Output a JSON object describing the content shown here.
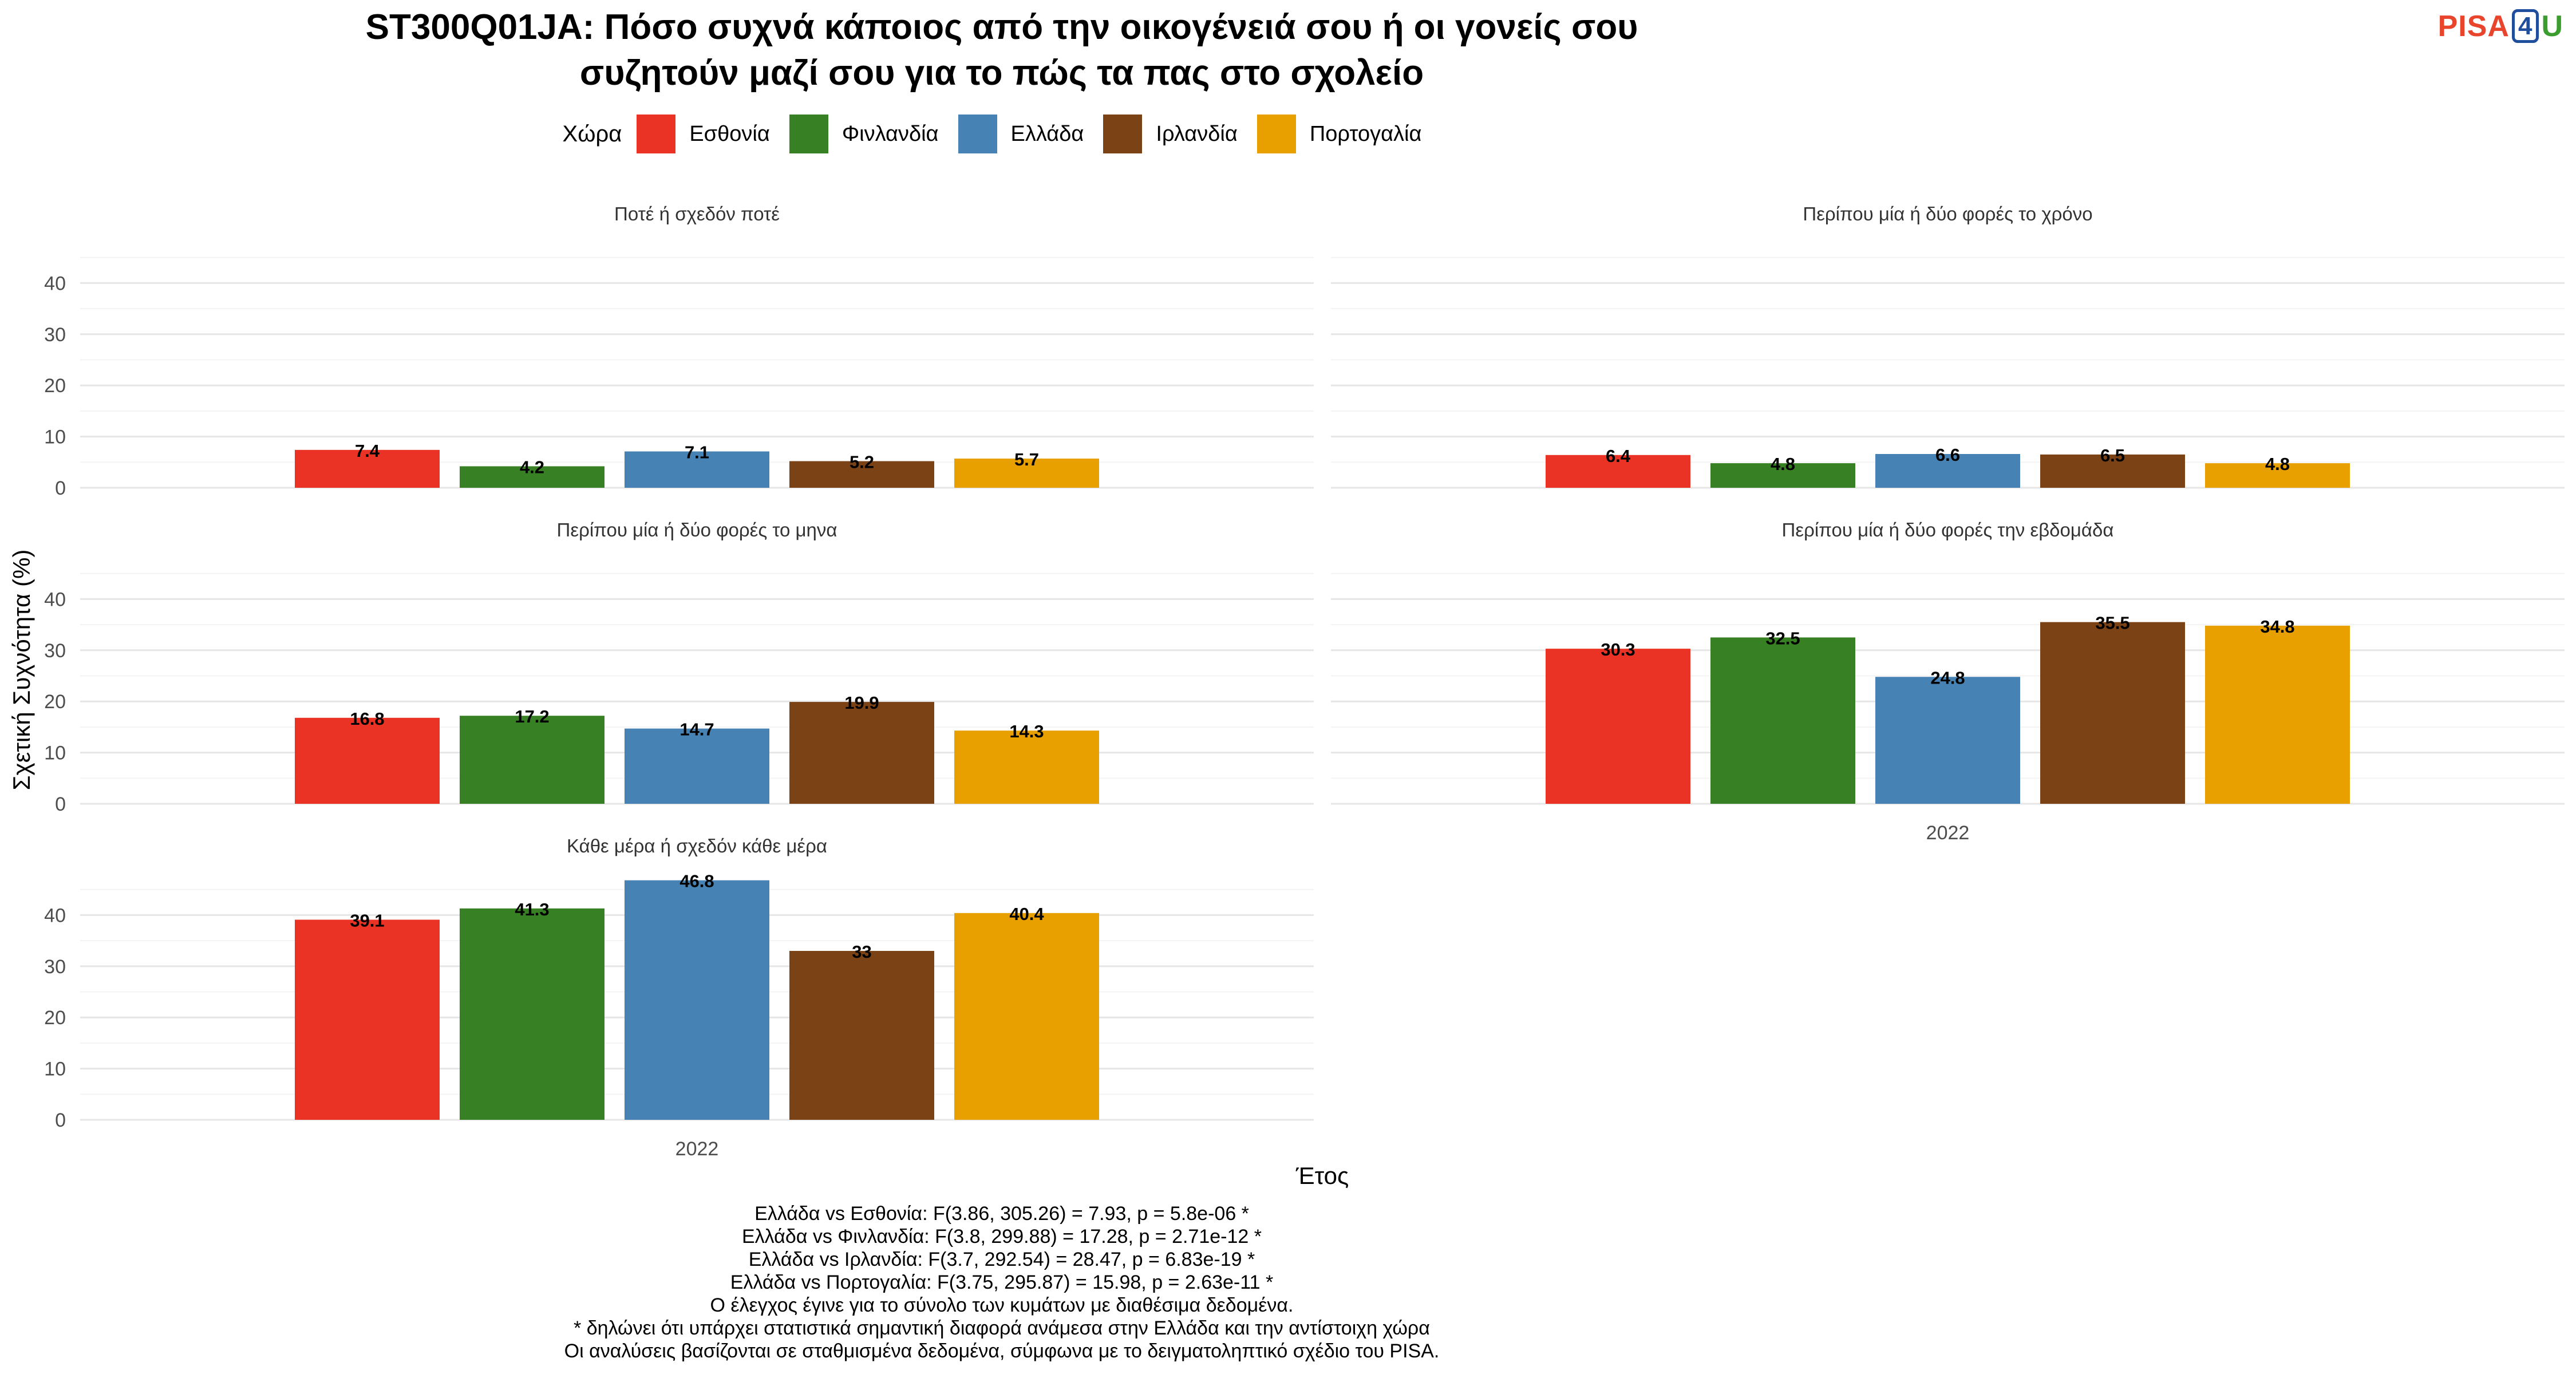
{
  "title_line1": "ST300Q01JA: Πόσο συχνά κάποιος από την οικογένειά σου ή οι γονείς σου",
  "title_line2": "συζητούν μαζί σου για το πώς τα πας στο σχολείο",
  "logo": {
    "part1": "PISA",
    "part2": "4",
    "part3": "U"
  },
  "legend": {
    "title": "Χώρα",
    "items": [
      {
        "label": "Εσθονία",
        "color": "#EA3324"
      },
      {
        "label": "Φινλανδία",
        "color": "#378024"
      },
      {
        "label": "Ελλάδα",
        "color": "#4682B4"
      },
      {
        "label": "Ιρλανδία",
        "color": "#7B4215"
      },
      {
        "label": "Πορτογαλία",
        "color": "#E8A000"
      }
    ]
  },
  "footer": {
    "line1": "Ελλάδα vs Εσθονία: F(3.86, 305.26) = 7.93, p = 5.8e-06 *",
    "line2": "Ελλάδα vs Φινλανδία: F(3.8, 299.88) = 17.28, p = 2.71e-12 *",
    "line3": "Ελλάδα vs Ιρλανδία: F(3.7, 292.54) = 28.47, p = 6.83e-19 *",
    "line4": "Ελλάδα vs Πορτογαλία: F(3.75, 295.87) = 15.98, p = 2.63e-11 *",
    "line5": "Ο έλεγχος έγινε για το σύνολο των κυμάτων με διαθέσιμα δεδομένα.",
    "line6": "* δηλώνει ότι υπάρχει στατιστικά σημαντική διαφορά ανάμεσα στην Ελλάδα και την αντίστοιχη χώρα",
    "line7": "Οι αναλύσεις βασίζονται σε σταθμισμένα δεδομένα, σύμφωνα με το δειγματοληπτικό σχέδιο του PISA."
  },
  "chart_data": {
    "type": "bar",
    "xlabel": "Έτος",
    "ylabel": "Σχετική Συχνότητα (%)",
    "ylim": [
      0,
      45
    ],
    "yticks": [
      0,
      10,
      20,
      30,
      40
    ],
    "x": "2022",
    "series_names": [
      "Εσθονία",
      "Φινλανδία",
      "Ελλάδα",
      "Ιρλανδία",
      "Πορτογαλία"
    ],
    "panels": [
      {
        "title": "Ποτέ ή σχεδόν ποτέ",
        "values": [
          7.4,
          4.2,
          7.1,
          5.2,
          5.7
        ],
        "labels": [
          "7.4",
          "4.2",
          "7.1",
          "5.2",
          "5.7"
        ]
      },
      {
        "title": "Περίπου μία ή δύο φορές το χρόνο",
        "values": [
          6.4,
          4.8,
          6.6,
          6.5,
          4.8
        ],
        "labels": [
          "6.4",
          "4.8",
          "6.6",
          "6.5",
          "4.8"
        ]
      },
      {
        "title": "Περίπου μία ή δύο φορές το μηνα",
        "values": [
          16.8,
          17.2,
          14.7,
          19.9,
          14.3
        ],
        "labels": [
          "16.8",
          "17.2",
          "14.7",
          "19.9",
          "14.3"
        ]
      },
      {
        "title": "Περίπου μία ή δύο φορές την εβδομάδα",
        "values": [
          30.3,
          32.5,
          24.8,
          35.5,
          34.8
        ],
        "labels": [
          "30.3",
          "32.5",
          "24.8",
          "35.5",
          "34.8"
        ]
      },
      {
        "title": "Κάθε μέρα ή σχεδόν κάθε μέρα",
        "values": [
          39.1,
          41.3,
          46.8,
          33,
          40.4
        ],
        "labels": [
          "39.1",
          "41.3",
          "46.8",
          "33",
          "40.4"
        ]
      }
    ]
  }
}
